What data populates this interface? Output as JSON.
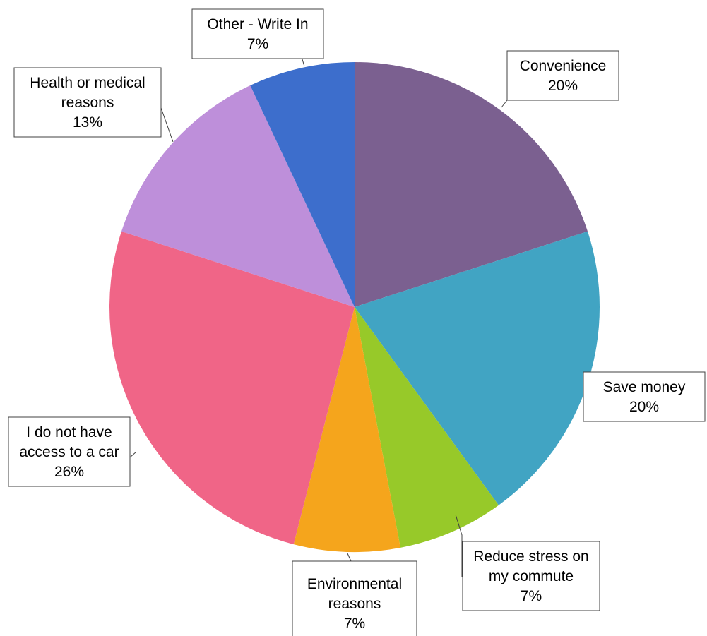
{
  "chart_data": {
    "type": "pie",
    "title": "",
    "start_angle_deg": 0,
    "direction": "clockwise",
    "slices": [
      {
        "label": "Convenience",
        "label_lines": [
          "Convenience"
        ],
        "value": 20,
        "value_label": "20%",
        "color": "#7B6090"
      },
      {
        "label": "Save money",
        "label_lines": [
          "Save money"
        ],
        "value": 20,
        "value_label": "20%",
        "color": "#41A4C3"
      },
      {
        "label": "Reduce stress on my commute",
        "label_lines": [
          "Reduce stress on",
          "my commute"
        ],
        "value": 7,
        "value_label": "7%",
        "color": "#97C929"
      },
      {
        "label": "Environmental reasons",
        "label_lines": [
          "Environmental",
          "reasons"
        ],
        "value": 7,
        "value_label": "7%",
        "color": "#F5A51C"
      },
      {
        "label": "I do not have access to a car",
        "label_lines": [
          "I do not have",
          "access to a car"
        ],
        "value": 26,
        "value_label": "26%",
        "color": "#F06587"
      },
      {
        "label": "Health or medical reasons",
        "label_lines": [
          "Health or medical",
          "reasons"
        ],
        "value": 13,
        "value_label": "13%",
        "color": "#BE8FDA"
      },
      {
        "label": "Other - Write In",
        "label_lines": [
          "Other - Write In"
        ],
        "value": 7,
        "value_label": "7%",
        "color": "#3D6ECC"
      }
    ],
    "data_labels": "callouts"
  }
}
